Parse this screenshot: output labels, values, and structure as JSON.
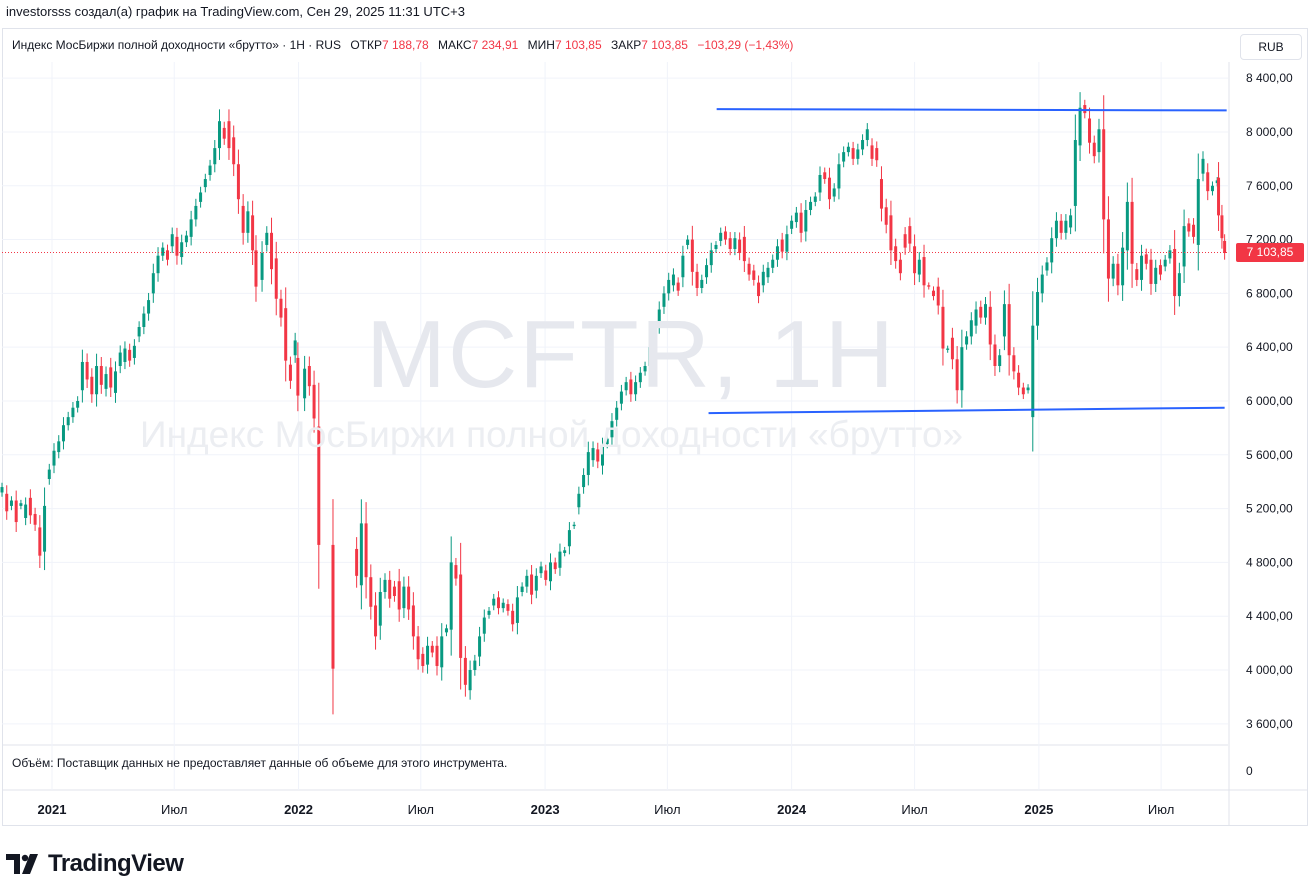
{
  "header": {
    "credit": "investorsss создал(а) график на TradingView.com, Сен 29, 2025 11:31 UTC+3"
  },
  "legend": {
    "symbol": "Индекс МосБиржи полной доходности «брутто» · 1Н · RUS",
    "open_label": "ОТКР",
    "open_value": "7 188,78",
    "high_label": "МАКС",
    "high_value": "7 234,91",
    "low_label": "МИН",
    "low_value": "7 103,85",
    "close_label": "ЗАКР",
    "close_value": "7 103,85",
    "change": "−103,29 (−1,43%)"
  },
  "currency_button": "RUB",
  "last_price_badge": "7 103,85",
  "volume_note": "Объём: Поставщик данных не предоставляет данные об объеме для этого инструмента.",
  "volume_axis_label": "0",
  "watermark": {
    "ticker": "MCFTR, 1H",
    "name": "Индекс МосБиржи полной доходности «брутто»"
  },
  "footer": {
    "brand": "TradingView"
  },
  "colors": {
    "up": "#089981",
    "down": "#f23645",
    "trendline": "#2962ff",
    "grid": "#f0f3fa"
  },
  "chart_data": {
    "type": "candlestick",
    "y_ticks": [
      "8 400,00",
      "8 000,00",
      "7 600,00",
      "7 200,00",
      "6 800,00",
      "6 400,00",
      "6 000,00",
      "5 600,00",
      "5 200,00",
      "4 800,00",
      "4 400,00",
      "4 000,00",
      "3 600,00"
    ],
    "y_tick_values": [
      8400,
      8000,
      7600,
      7200,
      6800,
      6400,
      6000,
      5600,
      5200,
      4800,
      4400,
      4000,
      3600
    ],
    "ylim": [
      3450,
      8520
    ],
    "x_ticks": [
      {
        "label": "2021",
        "date": "2021-01",
        "bold": true
      },
      {
        "label": "Июл",
        "date": "2021-07",
        "bold": false
      },
      {
        "label": "2022",
        "date": "2022-01",
        "bold": true
      },
      {
        "label": "Июл",
        "date": "2022-07",
        "bold": false
      },
      {
        "label": "2023",
        "date": "2023-01",
        "bold": true
      },
      {
        "label": "Июл",
        "date": "2023-07",
        "bold": false
      },
      {
        "label": "2024",
        "date": "2024-01",
        "bold": true
      },
      {
        "label": "Июл",
        "date": "2024-07",
        "bold": false
      },
      {
        "label": "2025",
        "date": "2025-01",
        "bold": true
      },
      {
        "label": "Июл",
        "date": "2025-07",
        "bold": false
      }
    ],
    "xlim": [
      "2020-10-19",
      "2025-10-08"
    ],
    "last_price": 7103.85,
    "trendlines": [
      {
        "from": {
          "date": "2023-09-12",
          "price": 8170
        },
        "to": {
          "date": "2025-10-06",
          "price": 8160
        }
      },
      {
        "from": {
          "date": "2023-08-31",
          "price": 5910
        },
        "to": {
          "date": "2025-10-03",
          "price": 5950
        }
      }
    ],
    "candles": [
      [
        "2020-10-19",
        5320,
        5360
      ],
      [
        "2020-10-26",
        5310,
        5180
      ],
      [
        "2020-11-02",
        5220,
        5260
      ],
      [
        "2020-11-09",
        5260,
        5100
      ],
      [
        "2020-11-16",
        5220,
        5240
      ],
      [
        "2020-11-23",
        5130,
        5230
      ],
      [
        "2020-11-30",
        5280,
        5150
      ],
      [
        "2020-12-07",
        5160,
        5080
      ],
      [
        "2020-12-14",
        5060,
        4850
      ],
      [
        "2020-12-21",
        4880,
        5220
      ],
      [
        "2020-12-28",
        5420,
        5490
      ],
      [
        "2021-01-04",
        5520,
        5630
      ],
      [
        "2021-01-11",
        5620,
        5700
      ],
      [
        "2021-01-18",
        5700,
        5820
      ],
      [
        "2021-01-25",
        5820,
        5880
      ],
      [
        "2021-02-01",
        5880,
        5950
      ],
      [
        "2021-02-08",
        5950,
        6000
      ],
      [
        "2021-02-15",
        6080,
        6290
      ],
      [
        "2021-02-22",
        6290,
        6160
      ],
      [
        "2021-03-01",
        6180,
        6050
      ],
      [
        "2021-03-08",
        6050,
        6260
      ],
      [
        "2021-03-15",
        6260,
        6120
      ],
      [
        "2021-03-22",
        6090,
        6200
      ],
      [
        "2021-03-29",
        6250,
        6100
      ],
      [
        "2021-04-05",
        6060,
        6220
      ],
      [
        "2021-04-12",
        6260,
        6360
      ],
      [
        "2021-04-19",
        6290,
        6390
      ],
      [
        "2021-04-26",
        6380,
        6300
      ],
      [
        "2021-05-03",
        6320,
        6410
      ],
      [
        "2021-05-10",
        6480,
        6550
      ],
      [
        "2021-05-17",
        6550,
        6650
      ],
      [
        "2021-05-24",
        6650,
        6750
      ],
      [
        "2021-05-31",
        6800,
        6950
      ],
      [
        "2021-06-07",
        6950,
        7080
      ],
      [
        "2021-06-14",
        7080,
        7140
      ],
      [
        "2021-06-21",
        7120,
        7050
      ],
      [
        "2021-06-28",
        7150,
        7240
      ],
      [
        "2021-07-05",
        7220,
        7080
      ],
      [
        "2021-07-12",
        7070,
        7180
      ],
      [
        "2021-07-19",
        7180,
        7230
      ],
      [
        "2021-07-26",
        7220,
        7350
      ],
      [
        "2021-08-02",
        7350,
        7450
      ],
      [
        "2021-08-09",
        7480,
        7550
      ],
      [
        "2021-08-16",
        7590,
        7650
      ],
      [
        "2021-08-23",
        7680,
        7750
      ],
      [
        "2021-08-30",
        7760,
        7880
      ],
      [
        "2021-09-06",
        7880,
        8080
      ],
      [
        "2021-09-13",
        8030,
        7950
      ],
      [
        "2021-09-20",
        8080,
        7880
      ],
      [
        "2021-09-27",
        7960,
        7760
      ],
      [
        "2021-10-04",
        7760,
        7500
      ],
      [
        "2021-10-11",
        7450,
        7250
      ],
      [
        "2021-10-18",
        7250,
        7410
      ],
      [
        "2021-10-25",
        7380,
        7120
      ],
      [
        "2021-10-30",
        7120,
        6850
      ],
      [
        "2021-11-08",
        6900,
        7100
      ],
      [
        "2021-11-15",
        7160,
        7250
      ],
      [
        "2021-11-22",
        7250,
        6980
      ],
      [
        "2021-11-29",
        7060,
        6760
      ],
      [
        "2021-12-06",
        6760,
        6620
      ],
      [
        "2021-12-13",
        6690,
        6300
      ],
      [
        "2021-12-20",
        6270,
        6150
      ],
      [
        "2021-12-27",
        6340,
        6450
      ],
      [
        "2021-12-31",
        6320,
        6040
      ],
      [
        "2022-01-10",
        6020,
        6240
      ],
      [
        "2022-01-17",
        6260,
        6110
      ],
      [
        "2022-01-24",
        6120,
        5870
      ],
      [
        "2022-01-31",
        5810,
        4930
      ],
      [
        "2022-02-21",
        4930,
        4010
      ],
      [
        "2022-03-28",
        4900,
        4700
      ],
      [
        "2022-04-04",
        4630,
        5090
      ],
      [
        "2022-04-11",
        5090,
        4690
      ],
      [
        "2022-04-18",
        4690,
        4470
      ],
      [
        "2022-04-25",
        4480,
        4250
      ],
      [
        "2022-05-02",
        4330,
        4580
      ],
      [
        "2022-05-09",
        4580,
        4670
      ],
      [
        "2022-05-16",
        4670,
        4530
      ],
      [
        "2022-05-23",
        4620,
        4550
      ],
      [
        "2022-05-30",
        4660,
        4450
      ],
      [
        "2022-06-06",
        4460,
        4620
      ],
      [
        "2022-06-13",
        4620,
        4450
      ],
      [
        "2022-06-20",
        4480,
        4250
      ],
      [
        "2022-06-27",
        4250,
        4080
      ],
      [
        "2022-07-04",
        4120,
        4030
      ],
      [
        "2022-07-11",
        4040,
        4180
      ],
      [
        "2022-07-18",
        4180,
        4130
      ],
      [
        "2022-07-25",
        4180,
        4030
      ],
      [
        "2022-08-01",
        4020,
        4250
      ],
      [
        "2022-08-08",
        4280,
        4310
      ],
      [
        "2022-08-15",
        4300,
        4800
      ],
      [
        "2022-08-22",
        4780,
        4680
      ],
      [
        "2022-08-29",
        4710,
        4090
      ],
      [
        "2022-09-05",
        4090,
        3890
      ],
      [
        "2022-09-12",
        3850,
        4000
      ],
      [
        "2022-09-19",
        4000,
        4070
      ],
      [
        "2022-09-26",
        4100,
        4250
      ],
      [
        "2022-10-03",
        4270,
        4390
      ],
      [
        "2022-10-10",
        4410,
        4440
      ],
      [
        "2022-10-17",
        4480,
        4530
      ],
      [
        "2022-10-24",
        4540,
        4460
      ],
      [
        "2022-10-31",
        4460,
        4500
      ],
      [
        "2022-11-07",
        4490,
        4440
      ],
      [
        "2022-11-14",
        4440,
        4340
      ],
      [
        "2022-11-21",
        4350,
        4540
      ],
      [
        "2022-11-28",
        4580,
        4620
      ],
      [
        "2022-12-05",
        4620,
        4700
      ],
      [
        "2022-12-12",
        4710,
        4560
      ],
      [
        "2022-12-19",
        4590,
        4700
      ],
      [
        "2022-12-26",
        4720,
        4770
      ],
      [
        "2023-01-02",
        4740,
        4670
      ],
      [
        "2023-01-09",
        4660,
        4800
      ],
      [
        "2023-01-16",
        4800,
        4750
      ],
      [
        "2023-01-23",
        4760,
        4880
      ],
      [
        "2023-01-30",
        4870,
        4890
      ],
      [
        "2023-02-06",
        4920,
        5040
      ],
      [
        "2023-02-13",
        5070,
        5080
      ],
      [
        "2023-02-20",
        5210,
        5310
      ],
      [
        "2023-02-27",
        5360,
        5450
      ],
      [
        "2023-03-06",
        5450,
        5620
      ],
      [
        "2023-03-13",
        5560,
        5650
      ],
      [
        "2023-03-20",
        5640,
        5550
      ],
      [
        "2023-03-27",
        5520,
        5660
      ],
      [
        "2023-04-03",
        5680,
        5720
      ],
      [
        "2023-04-10",
        5730,
        5850
      ],
      [
        "2023-04-17",
        5860,
        5950
      ],
      [
        "2023-04-24",
        5980,
        6070
      ],
      [
        "2023-05-01",
        6080,
        6140
      ],
      [
        "2023-05-08",
        6160,
        6050
      ],
      [
        "2023-05-15",
        6050,
        6140
      ],
      [
        "2023-05-22",
        6140,
        6210
      ],
      [
        "2023-05-29",
        6220,
        6260
      ],
      [
        "2023-06-05",
        6260,
        6400
      ],
      [
        "2023-06-12",
        6400,
        6480
      ],
      [
        "2023-06-19",
        6560,
        6680
      ],
      [
        "2023-06-26",
        6700,
        6800
      ],
      [
        "2023-07-03",
        6800,
        6900
      ],
      [
        "2023-07-10",
        6860,
        6940
      ],
      [
        "2023-07-17",
        6880,
        6820
      ],
      [
        "2023-07-24",
        6920,
        7080
      ],
      [
        "2023-07-31",
        7160,
        7200
      ],
      [
        "2023-08-07",
        7200,
        6960
      ],
      [
        "2023-08-14",
        6960,
        6840
      ],
      [
        "2023-08-21",
        6840,
        6900
      ],
      [
        "2023-08-28",
        6920,
        7010
      ],
      [
        "2023-09-04",
        7010,
        7120
      ],
      [
        "2023-09-11",
        7130,
        7160
      ],
      [
        "2023-09-18",
        7190,
        7250
      ],
      [
        "2023-09-25",
        7260,
        7200
      ],
      [
        "2023-10-02",
        7210,
        7130
      ],
      [
        "2023-10-09",
        7130,
        7210
      ],
      [
        "2023-10-16",
        7200,
        7100
      ],
      [
        "2023-10-23",
        7220,
        7040
      ],
      [
        "2023-10-30",
        7020,
        6940
      ],
      [
        "2023-11-06",
        6970,
        6900
      ],
      [
        "2023-11-13",
        6880,
        6780
      ],
      [
        "2023-11-20",
        6860,
        6960
      ],
      [
        "2023-11-27",
        6920,
        6990
      ],
      [
        "2023-12-04",
        6990,
        7050
      ],
      [
        "2023-12-11",
        7050,
        7150
      ],
      [
        "2023-12-18",
        7200,
        7110
      ],
      [
        "2023-12-25",
        7110,
        7240
      ],
      [
        "2024-01-01",
        7280,
        7340
      ],
      [
        "2024-01-08",
        7330,
        7400
      ],
      [
        "2024-01-15",
        7400,
        7250
      ],
      [
        "2024-01-22",
        7260,
        7420
      ],
      [
        "2024-01-29",
        7420,
        7480
      ],
      [
        "2024-02-05",
        7480,
        7520
      ],
      [
        "2024-02-12",
        7550,
        7680
      ],
      [
        "2024-02-19",
        7700,
        7650
      ],
      [
        "2024-02-26",
        7660,
        7500
      ],
      [
        "2024-03-04",
        7520,
        7580
      ],
      [
        "2024-03-11",
        7580,
        7760
      ],
      [
        "2024-03-18",
        7780,
        7850
      ],
      [
        "2024-03-25",
        7850,
        7890
      ],
      [
        "2024-04-01",
        7880,
        7800
      ],
      [
        "2024-04-08",
        7800,
        7870
      ],
      [
        "2024-04-15",
        7870,
        7940
      ],
      [
        "2024-04-22",
        7940,
        8020
      ],
      [
        "2024-04-29",
        7900,
        7800
      ],
      [
        "2024-05-06",
        7880,
        7790
      ],
      [
        "2024-05-13",
        7650,
        7430
      ],
      [
        "2024-05-20",
        7440,
        7310
      ],
      [
        "2024-05-27",
        7380,
        7120
      ],
      [
        "2024-06-03",
        7150,
        7040
      ],
      [
        "2024-06-10",
        7050,
        6950
      ],
      [
        "2024-06-17",
        7240,
        7140
      ],
      [
        "2024-06-24",
        7300,
        7170
      ],
      [
        "2024-07-01",
        7150,
        6950
      ],
      [
        "2024-07-08",
        6940,
        7050
      ],
      [
        "2024-07-15",
        7070,
        6860
      ],
      [
        "2024-07-22",
        6860,
        6850
      ],
      [
        "2024-07-29",
        6820,
        6780
      ],
      [
        "2024-08-05",
        6850,
        6710
      ],
      [
        "2024-08-12",
        6700,
        6390
      ],
      [
        "2024-08-19",
        6380,
        6390
      ],
      [
        "2024-08-26",
        6470,
        6310
      ],
      [
        "2024-09-02",
        6310,
        6080
      ],
      [
        "2024-09-09",
        6080,
        6400
      ],
      [
        "2024-09-16",
        6420,
        6480
      ],
      [
        "2024-09-23",
        6480,
        6600
      ],
      [
        "2024-09-30",
        6560,
        6680
      ],
      [
        "2024-10-07",
        6700,
        6620
      ],
      [
        "2024-10-14",
        6620,
        6720
      ],
      [
        "2024-10-21",
        6700,
        6420
      ],
      [
        "2024-10-28",
        6420,
        6260
      ],
      [
        "2024-11-04",
        6260,
        6340
      ],
      [
        "2024-11-11",
        6480,
        6720
      ],
      [
        "2024-11-18",
        6720,
        6340
      ],
      [
        "2024-11-25",
        6340,
        6220
      ],
      [
        "2024-12-02",
        6210,
        6100
      ],
      [
        "2024-12-09",
        6100,
        6050
      ],
      [
        "2024-12-16",
        6080,
        6100
      ],
      [
        "2024-12-23",
        5880,
        6560
      ],
      [
        "2024-12-30",
        6560,
        6810
      ],
      [
        "2025-01-06",
        6800,
        6940
      ],
      [
        "2025-01-13",
        6970,
        7030
      ],
      [
        "2025-01-20",
        7030,
        7210
      ],
      [
        "2025-01-27",
        7210,
        7340
      ],
      [
        "2025-02-03",
        7340,
        7250
      ],
      [
        "2025-02-10",
        7250,
        7340
      ],
      [
        "2025-02-17",
        7290,
        7380
      ],
      [
        "2025-02-24",
        7450,
        7940
      ],
      [
        "2025-03-03",
        7900,
        8180
      ],
      [
        "2025-03-10",
        8200,
        8140
      ],
      [
        "2025-03-17",
        8100,
        7920
      ],
      [
        "2025-03-24",
        7920,
        7820
      ],
      [
        "2025-03-31",
        7850,
        8020
      ],
      [
        "2025-04-07",
        8020,
        7350
      ],
      [
        "2025-04-14",
        7350,
        6910
      ],
      [
        "2025-04-21",
        6910,
        7020
      ],
      [
        "2025-04-28",
        7020,
        6860
      ],
      [
        "2025-05-05",
        6860,
        7140
      ],
      [
        "2025-05-12",
        7120,
        7480
      ],
      [
        "2025-05-19",
        7480,
        7020
      ],
      [
        "2025-05-26",
        6980,
        6900
      ],
      [
        "2025-06-02",
        6900,
        7080
      ],
      [
        "2025-06-09",
        7090,
        7020
      ],
      [
        "2025-06-16",
        7050,
        6870
      ],
      [
        "2025-06-23",
        6870,
        6990
      ],
      [
        "2025-06-30",
        7010,
        6940
      ],
      [
        "2025-07-07",
        7000,
        7050
      ],
      [
        "2025-07-14",
        7060,
        7120
      ],
      [
        "2025-07-21",
        7130,
        6780
      ],
      [
        "2025-07-28",
        6780,
        6950
      ],
      [
        "2025-08-04",
        7000,
        7300
      ],
      [
        "2025-08-11",
        7320,
        7260
      ],
      [
        "2025-08-18",
        7310,
        7220
      ],
      [
        "2025-08-25",
        7160,
        7650
      ],
      [
        "2025-09-01",
        7690,
        7800
      ],
      [
        "2025-09-08",
        7700,
        7560
      ],
      [
        "2025-09-15",
        7560,
        7600
      ],
      [
        "2025-09-22",
        7620,
        7640
      ],
      [
        "2025-09-24",
        7660,
        7380
      ],
      [
        "2025-09-29",
        7380,
        7210
      ],
      [
        "2025-10-03",
        7190,
        7100
      ]
    ]
  }
}
